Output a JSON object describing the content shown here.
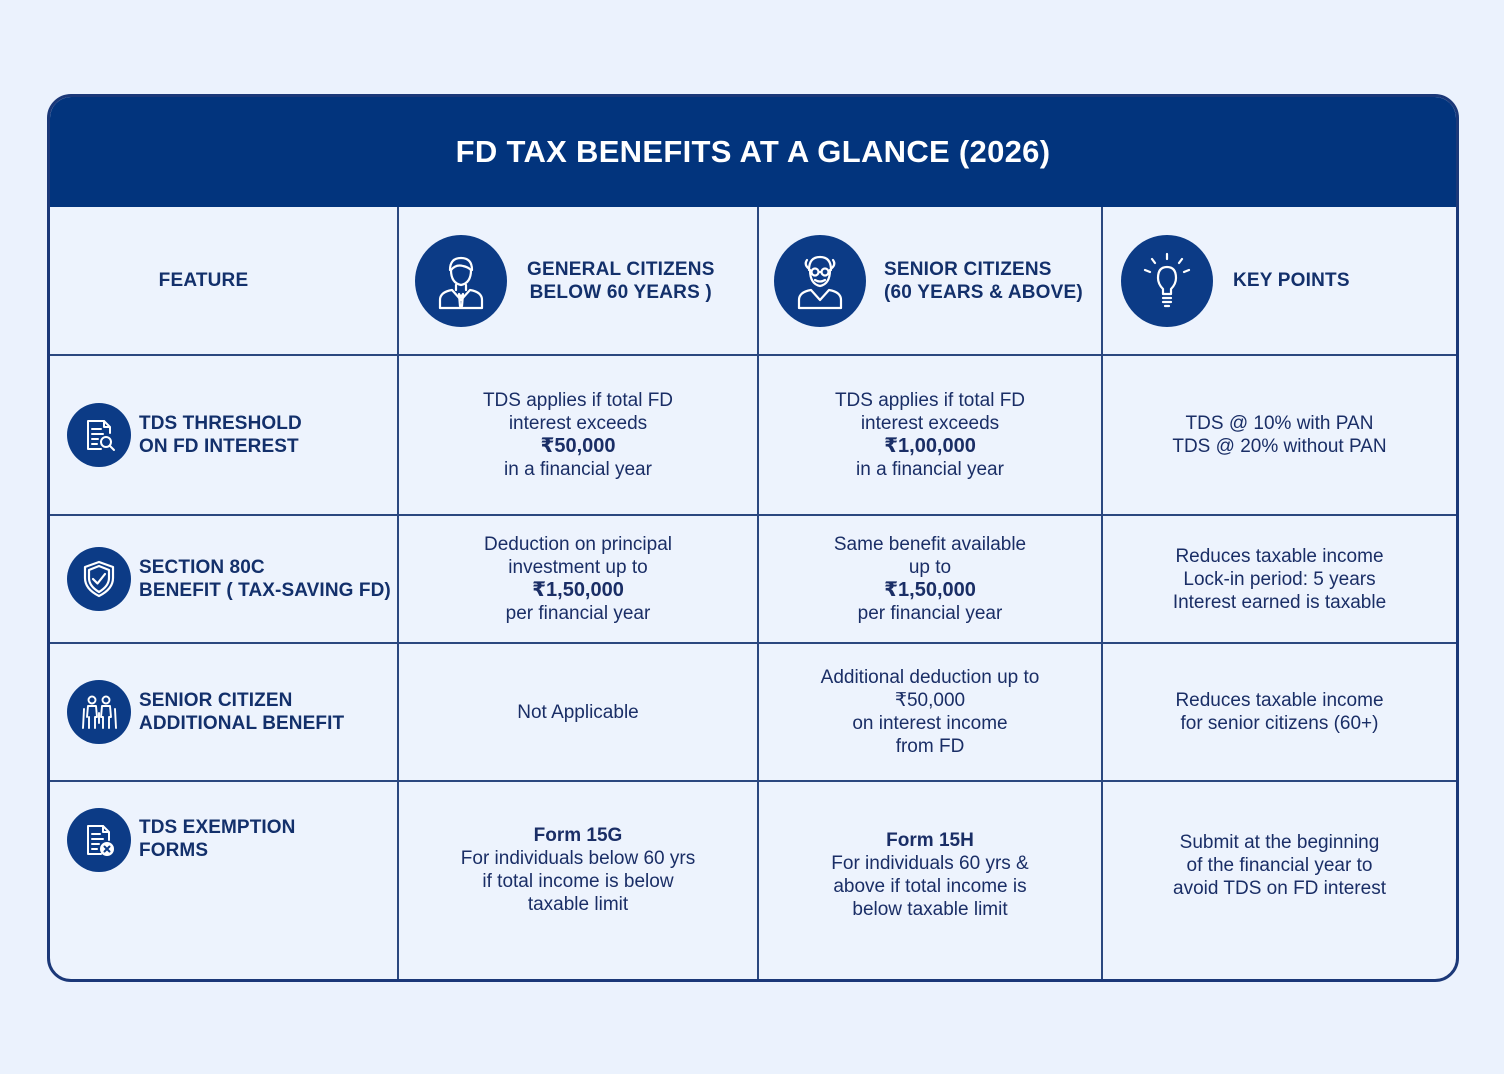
{
  "title": "FD TAX BENEFITS AT A GLANCE (2026)",
  "header": {
    "feature": "FEATURE",
    "general": [
      "GENERAL CITIZENS",
      "BELOW 60 YEARS )"
    ],
    "senior": [
      "SENIOR CITIZENS",
      "(60 YEARS & ABOVE)"
    ],
    "key": "KEY POINTS"
  },
  "rows": [
    {
      "feature": [
        "TDS THRESHOLD",
        "ON FD INTEREST"
      ],
      "icon": "document-search-icon",
      "general": [
        "TDS applies if total FD",
        "interest exceeds",
        "₹50,000",
        "in a financial year"
      ],
      "senior": [
        "TDS applies if total FD",
        "interest exceeds",
        "₹1,00,000",
        "in a financial year"
      ],
      "key": [
        "TDS @ 10% with PAN",
        "TDS @ 20% without PAN"
      ]
    },
    {
      "feature": [
        "SECTION 80C",
        "BENEFIT ( TAX-SAVING FD)"
      ],
      "icon": "shield-check-icon",
      "general": [
        "Deduction on principal",
        "investment up to",
        "₹1,50,000",
        "per financial year"
      ],
      "senior": [
        "Same benefit available",
        "up to",
        "₹1,50,000",
        "per financial year"
      ],
      "key": [
        "Reduces taxable income",
        "Lock-in period: 5 years",
        "Interest earned is taxable"
      ]
    },
    {
      "feature": [
        "SENIOR CITIZEN",
        "ADDITIONAL BENEFIT"
      ],
      "icon": "elderly-couple-icon",
      "general": [
        "Not Applicable"
      ],
      "senior": [
        "Additional deduction up to",
        "₹50,000",
        "on interest income",
        "from FD"
      ],
      "key": [
        "Reduces taxable income",
        "for senior citizens (60+)"
      ]
    },
    {
      "feature": [
        "TDS EXEMPTION",
        "FORMS"
      ],
      "icon": "form-exemption-icon",
      "general": [
        "Form 15G",
        "For individuals below 60 yrs",
        "if total income is below",
        "taxable limit"
      ],
      "senior": [
        "Form 15H",
        "For individuals 60 yrs &",
        "above if total income is",
        "below taxable limit"
      ],
      "key": [
        "Submit at the beginning",
        "of the financial year to",
        "avoid TDS on FD interest"
      ]
    }
  ],
  "colors": {
    "navy": "#02347D",
    "icon_bg": "#0C3B86",
    "page_bg": "#EBF2FD",
    "text": "#13306B"
  }
}
